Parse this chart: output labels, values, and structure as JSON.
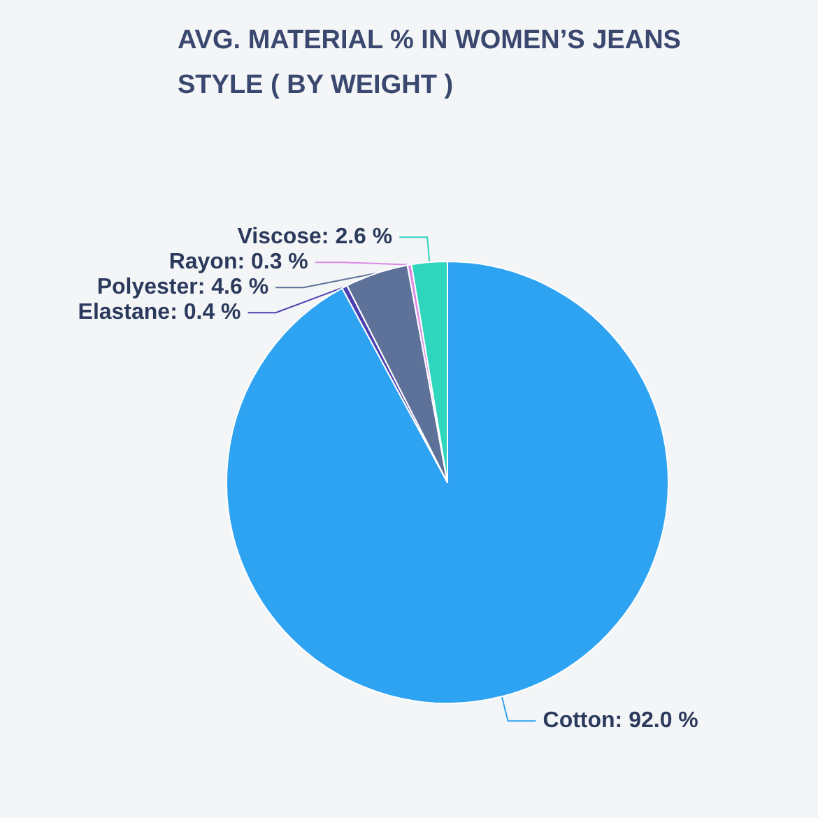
{
  "chart_data": {
    "type": "pie",
    "title": "AVG. MATERIAL % IN WOMEN’S JEANS\nSTYLE ( BY WEIGHT )",
    "categories": [
      "Cotton",
      "Elastane",
      "Polyester",
      "Rayon",
      "Viscose"
    ],
    "values": [
      92.0,
      0.4,
      4.6,
      0.3,
      2.6
    ],
    "value_labels": [
      "92.0 %",
      "0.4 %",
      "4.6 %",
      "0.3 %",
      "2.6 %"
    ],
    "colors": [
      "#2ea3f2",
      "#4a3fb0",
      "#5d7199",
      "#d98ae6",
      "#2fd6be"
    ],
    "legend": false
  }
}
